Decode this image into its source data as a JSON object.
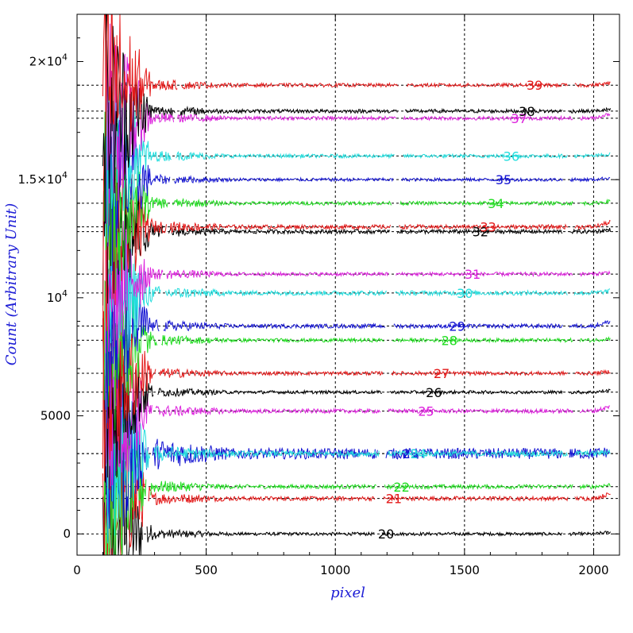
{
  "chart_data": {
    "type": "line",
    "xlabel": "pixel",
    "ylabel": "Count (Arbitrary Unit)",
    "xlim": [
      0,
      2100
    ],
    "ylim": [
      -900,
      22000
    ],
    "grid": true,
    "x_ticks": [
      {
        "value": 0,
        "label": "0"
      },
      {
        "value": 500,
        "label": "500"
      },
      {
        "value": 1000,
        "label": "1000"
      },
      {
        "value": 1500,
        "label": "1500"
      },
      {
        "value": 2000,
        "label": "2000"
      }
    ],
    "y_ticks": [
      {
        "value": 0,
        "label": "0",
        "mantissa": "",
        "exponent": ""
      },
      {
        "value": 5000,
        "label": "5000",
        "mantissa": "",
        "exponent": ""
      },
      {
        "value": 10000,
        "label": "",
        "mantissa": "10",
        "exponent": "4"
      },
      {
        "value": 15000,
        "label": "",
        "mantissa": "1.5×10",
        "exponent": "4"
      },
      {
        "value": 20000,
        "label": "",
        "mantissa": "2×10",
        "exponent": "4"
      }
    ],
    "series": [
      {
        "name": "20",
        "offset": 0,
        "color": "#000000",
        "label_x": 1165,
        "noise": 70,
        "start_x": 100
      },
      {
        "name": "21",
        "offset": 1500,
        "color": "#e41a1a",
        "label_x": 1195,
        "noise": 90,
        "start_x": 100
      },
      {
        "name": "22",
        "offset": 2000,
        "color": "#22dd22",
        "label_x": 1225,
        "noise": 90,
        "start_x": 105
      },
      {
        "name": "23",
        "offset": 3400,
        "color": "#1414d2",
        "label_x": 1260,
        "noise": 230,
        "start_x": 110
      },
      {
        "name": "24",
        "offset": 3400,
        "color": "#22dddd",
        "label_x": 1290,
        "noise": 120,
        "start_x": 110
      },
      {
        "name": "25",
        "offset": 5200,
        "color": "#dd22dd",
        "label_x": 1320,
        "noise": 90,
        "start_x": 110
      },
      {
        "name": "26",
        "offset": 6000,
        "color": "#000000",
        "label_x": 1350,
        "noise": 70,
        "start_x": 100
      },
      {
        "name": "27",
        "offset": 6800,
        "color": "#e41a1a",
        "label_x": 1380,
        "noise": 80,
        "start_x": 100
      },
      {
        "name": "28",
        "offset": 8200,
        "color": "#22dd22",
        "label_x": 1410,
        "noise": 80,
        "start_x": 105
      },
      {
        "name": "29",
        "offset": 8800,
        "color": "#1414d2",
        "label_x": 1440,
        "noise": 90,
        "start_x": 110
      },
      {
        "name": "30",
        "offset": 10200,
        "color": "#22dddd",
        "label_x": 1470,
        "noise": 100,
        "start_x": 110
      },
      {
        "name": "31",
        "offset": 11000,
        "color": "#dd22dd",
        "label_x": 1500,
        "noise": 80,
        "start_x": 110
      },
      {
        "name": "32",
        "offset": 12800,
        "color": "#000000",
        "label_x": 1530,
        "noise": 90,
        "start_x": 100
      },
      {
        "name": "33",
        "offset": 13000,
        "color": "#e41a1a",
        "label_x": 1560,
        "noise": 90,
        "start_x": 100
      },
      {
        "name": "34",
        "offset": 14000,
        "color": "#22dd22",
        "label_x": 1590,
        "noise": 80,
        "start_x": 105
      },
      {
        "name": "35",
        "offset": 15000,
        "color": "#1414d2",
        "label_x": 1620,
        "noise": 70,
        "start_x": 110
      },
      {
        "name": "36",
        "offset": 16000,
        "color": "#22dddd",
        "label_x": 1650,
        "noise": 80,
        "start_x": 110
      },
      {
        "name": "37",
        "offset": 17600,
        "color": "#dd22dd",
        "label_x": 1680,
        "noise": 80,
        "start_x": 110
      },
      {
        "name": "38",
        "offset": 17900,
        "color": "#000000",
        "label_x": 1710,
        "noise": 80,
        "start_x": 100
      },
      {
        "name": "39",
        "offset": 19000,
        "color": "#e41a1a",
        "label_x": 1740,
        "noise": 80,
        "start_x": 100
      }
    ]
  }
}
